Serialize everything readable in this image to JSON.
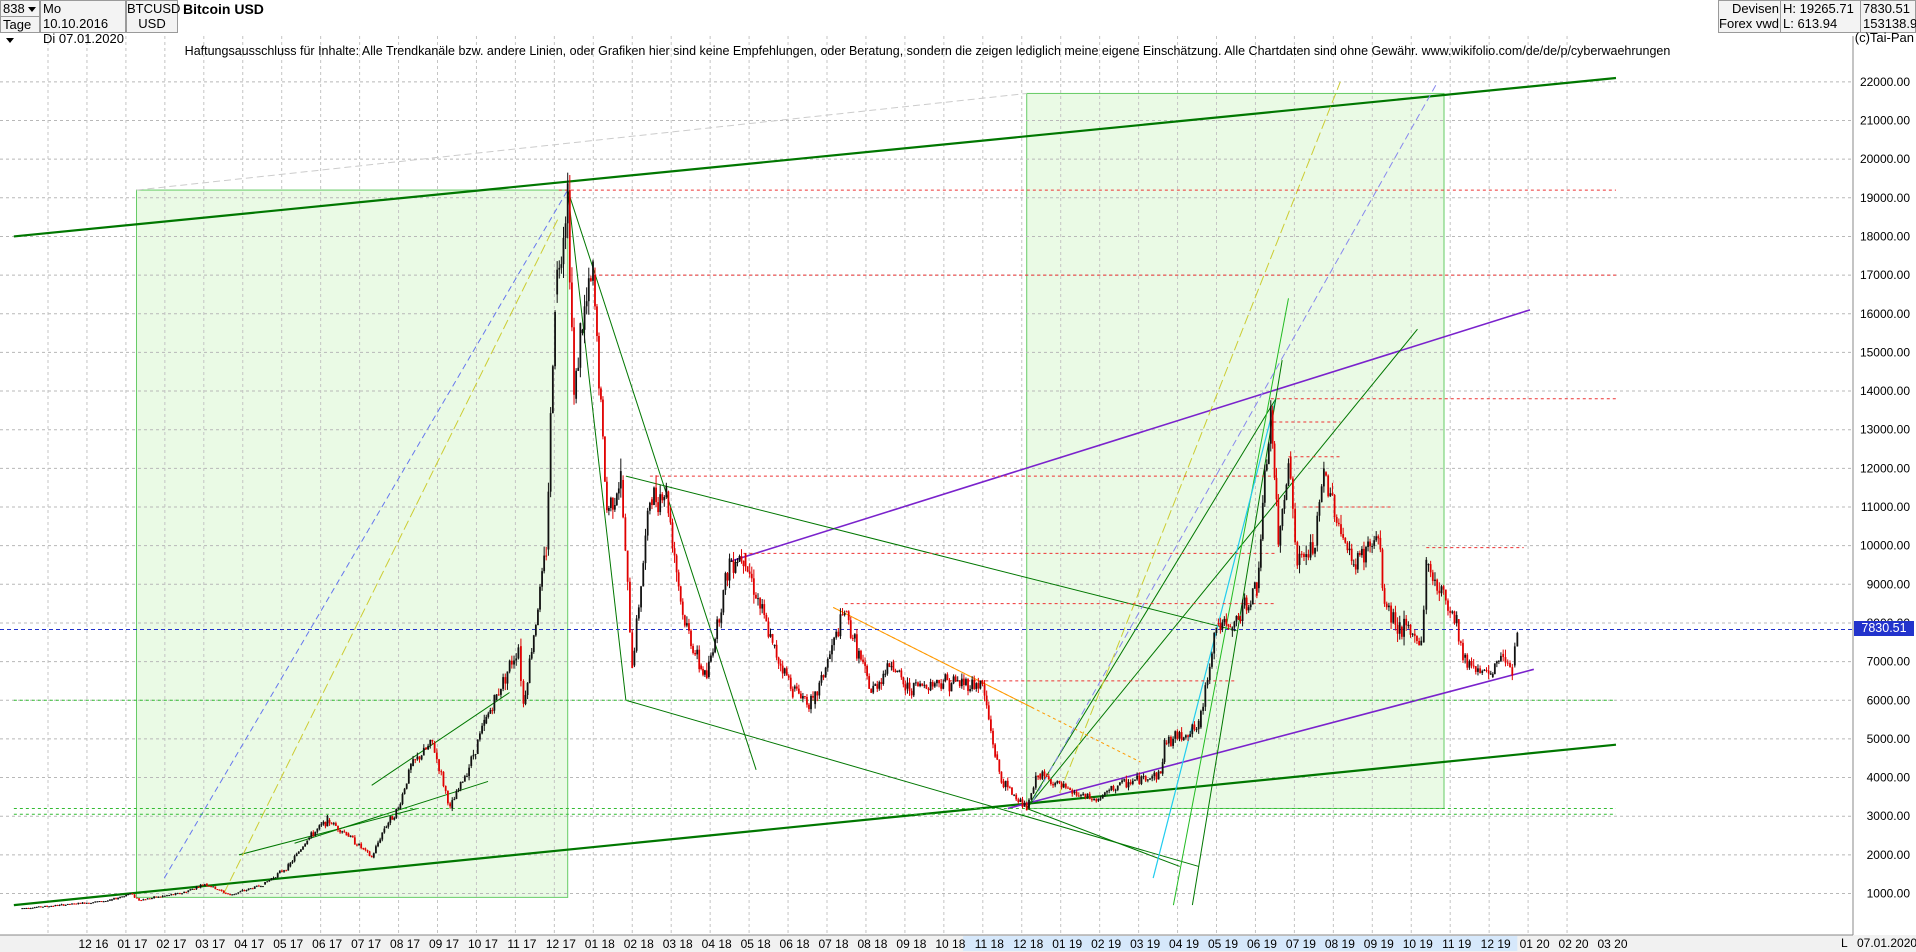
{
  "header": {
    "count": "838",
    "period": "Tage",
    "date_from": "Mo 10.10.2016",
    "date_to": "Di 07.01.2020",
    "symbol": "BTCUSD",
    "currency": "USD",
    "title": "Bitcoin USD",
    "market": "Devisen",
    "source": "Forex vwd",
    "high": "H: 19265.71",
    "low": "L: 613.94",
    "last": "7830.51",
    "volume": "153138.9"
  },
  "copyright": "(c)Tai-Pan",
  "disclaimer": "Haftungsausschluss für Inhalte: Alle Trendkanäle bzw. andere Linien, oder Grafiken hier sind keine Empfehlungen, oder Beratung, sondern die zeigen lediglich meine eigene Einschätzung. Alle Chartdaten sind ohne Gewähr.  www.wikifolio.com/de/de/p/cyberwaehrungen",
  "footer": {
    "scale_mode": "L",
    "date": "07.01.2020"
  },
  "colors": {
    "up": "#111111",
    "down": "#e00000",
    "trend": "#007700",
    "channel": "#7a22cc",
    "zone": "#d8f5d0",
    "price_line": "#2233cc"
  },
  "chart_data": {
    "type": "line",
    "title": "Bitcoin USD",
    "y_axis_position": "right",
    "ylim": [
      0,
      23800
    ],
    "y_ticks": [
      "1000.00",
      "2000.00",
      "3000.00",
      "4000.00",
      "5000.00",
      "6000.00",
      "7000.00",
      "8000.00",
      "9000.00",
      "10000.00",
      "11000.00",
      "12000.00",
      "13000.00",
      "14000.00",
      "15000.00",
      "16000.00",
      "17000.00",
      "18000.00",
      "19000.00",
      "20000.00",
      "21000.00",
      "22000.00"
    ],
    "x_ticks": [
      "12 16",
      "01 17",
      "02 17",
      "03 17",
      "04 17",
      "05 17",
      "06 17",
      "07 17",
      "08 17",
      "09 17",
      "10 17",
      "11 17",
      "12 17",
      "01 18",
      "02 18",
      "03 18",
      "04 18",
      "05 18",
      "06 18",
      "07 18",
      "08 18",
      "09 18",
      "10 18",
      "11 18",
      "12 18",
      "01 19",
      "02 19",
      "03 19",
      "04 19",
      "05 19",
      "06 19",
      "07 19",
      "08 19",
      "09 19",
      "10 19",
      "11 19",
      "12 19",
      "01 20",
      "02 20",
      "03 20"
    ],
    "last_price": 7830.51,
    "series": [
      {
        "values": [
          [
            "2016-10-10",
            615
          ],
          [
            "2016-11-15",
            710
          ],
          [
            "2016-12-20",
            820
          ],
          [
            "2017-01-05",
            1000
          ],
          [
            "2017-01-12",
            830
          ],
          [
            "2017-02-15",
            1010
          ],
          [
            "2017-03-05",
            1250
          ],
          [
            "2017-03-25",
            960
          ],
          [
            "2017-04-20",
            1230
          ],
          [
            "2017-05-10",
            1700
          ],
          [
            "2017-05-25",
            2400
          ],
          [
            "2017-06-10",
            2900
          ],
          [
            "2017-06-25",
            2550
          ],
          [
            "2017-07-15",
            1930
          ],
          [
            "2017-07-25",
            2700
          ],
          [
            "2017-08-05",
            3200
          ],
          [
            "2017-08-15",
            4300
          ],
          [
            "2017-09-01",
            4900
          ],
          [
            "2017-09-15",
            3200
          ],
          [
            "2017-09-30",
            4300
          ],
          [
            "2017-10-12",
            5400
          ],
          [
            "2017-10-20",
            6000
          ],
          [
            "2017-11-08",
            7400
          ],
          [
            "2017-11-12",
            5900
          ],
          [
            "2017-11-30",
            9900
          ],
          [
            "2017-12-07",
            16500
          ],
          [
            "2017-12-17",
            19200
          ],
          [
            "2017-12-22",
            13800
          ],
          [
            "2017-12-27",
            15500
          ],
          [
            "2018-01-06",
            17000
          ],
          [
            "2018-01-17",
            10900
          ],
          [
            "2018-01-28",
            11700
          ],
          [
            "2018-02-06",
            6900
          ],
          [
            "2018-02-20",
            11200
          ],
          [
            "2018-03-05",
            11400
          ],
          [
            "2018-03-18",
            8200
          ],
          [
            "2018-03-31",
            6900
          ],
          [
            "2018-04-06",
            6600
          ],
          [
            "2018-04-24",
            9600
          ],
          [
            "2018-05-05",
            9800
          ],
          [
            "2018-05-28",
            7400
          ],
          [
            "2018-06-13",
            6300
          ],
          [
            "2018-06-29",
            5900
          ],
          [
            "2018-07-24",
            8300
          ],
          [
            "2018-08-14",
            6200
          ],
          [
            "2018-08-30",
            7000
          ],
          [
            "2018-09-10",
            6300
          ],
          [
            "2018-10-10",
            6500
          ],
          [
            "2018-11-10",
            6400
          ],
          [
            "2018-11-20",
            4600
          ],
          [
            "2018-11-25",
            3900
          ],
          [
            "2018-12-15",
            3200
          ],
          [
            "2018-12-24",
            4100
          ],
          [
            "2019-01-20",
            3600
          ],
          [
            "2019-02-08",
            3400
          ],
          [
            "2019-02-25",
            3800
          ],
          [
            "2019-03-31",
            4100
          ],
          [
            "2019-04-03",
            4900
          ],
          [
            "2019-04-30",
            5300
          ],
          [
            "2019-05-14",
            8000
          ],
          [
            "2019-05-25",
            7800
          ],
          [
            "2019-06-15",
            8900
          ],
          [
            "2019-06-26",
            13500
          ],
          [
            "2019-07-02",
            10000
          ],
          [
            "2019-07-10",
            12300
          ],
          [
            "2019-07-17",
            9500
          ],
          [
            "2019-07-31",
            10000
          ],
          [
            "2019-08-07",
            11900
          ],
          [
            "2019-08-29",
            9500
          ],
          [
            "2019-09-19",
            10200
          ],
          [
            "2019-09-24",
            8500
          ],
          [
            "2019-10-06",
            7900
          ],
          [
            "2019-10-23",
            7500
          ],
          [
            "2019-10-27",
            9500
          ],
          [
            "2019-11-20",
            8100
          ],
          [
            "2019-11-25",
            7100
          ],
          [
            "2019-12-17",
            6600
          ],
          [
            "2019-12-25",
            7200
          ],
          [
            "2020-01-03",
            6900
          ],
          [
            "2020-01-07",
            7830
          ]
        ]
      }
    ]
  }
}
